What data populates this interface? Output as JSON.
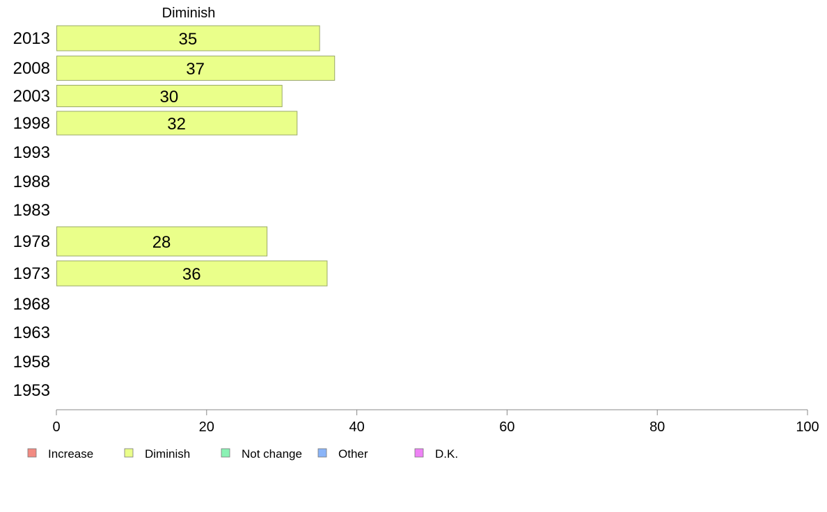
{
  "chart_data": {
    "type": "bar",
    "orientation": "horizontal",
    "title": "Diminish",
    "categories": [
      "2013",
      "2008",
      "2003",
      "1998",
      "1993",
      "1988",
      "1983",
      "1978",
      "1973",
      "1968",
      "1963",
      "1958",
      "1953"
    ],
    "series": [
      {
        "name": "Diminish",
        "color": "#eaff8a",
        "values": [
          35,
          37,
          30,
          32,
          null,
          null,
          null,
          28,
          36,
          null,
          null,
          null,
          null
        ]
      }
    ],
    "xlim": [
      0,
      100
    ],
    "xticks": [
      "0",
      "20",
      "40",
      "60",
      "80",
      "100"
    ],
    "grid": false,
    "legend": {
      "placement": "bottom",
      "items": [
        {
          "label": "Increase",
          "color": "#f28b82"
        },
        {
          "label": "Diminish",
          "color": "#eaff8a"
        },
        {
          "label": "Not change",
          "color": "#8af2b4"
        },
        {
          "label": "Other",
          "color": "#8ab4f8"
        },
        {
          "label": "D.K.",
          "color": "#ee82f5"
        }
      ]
    }
  }
}
